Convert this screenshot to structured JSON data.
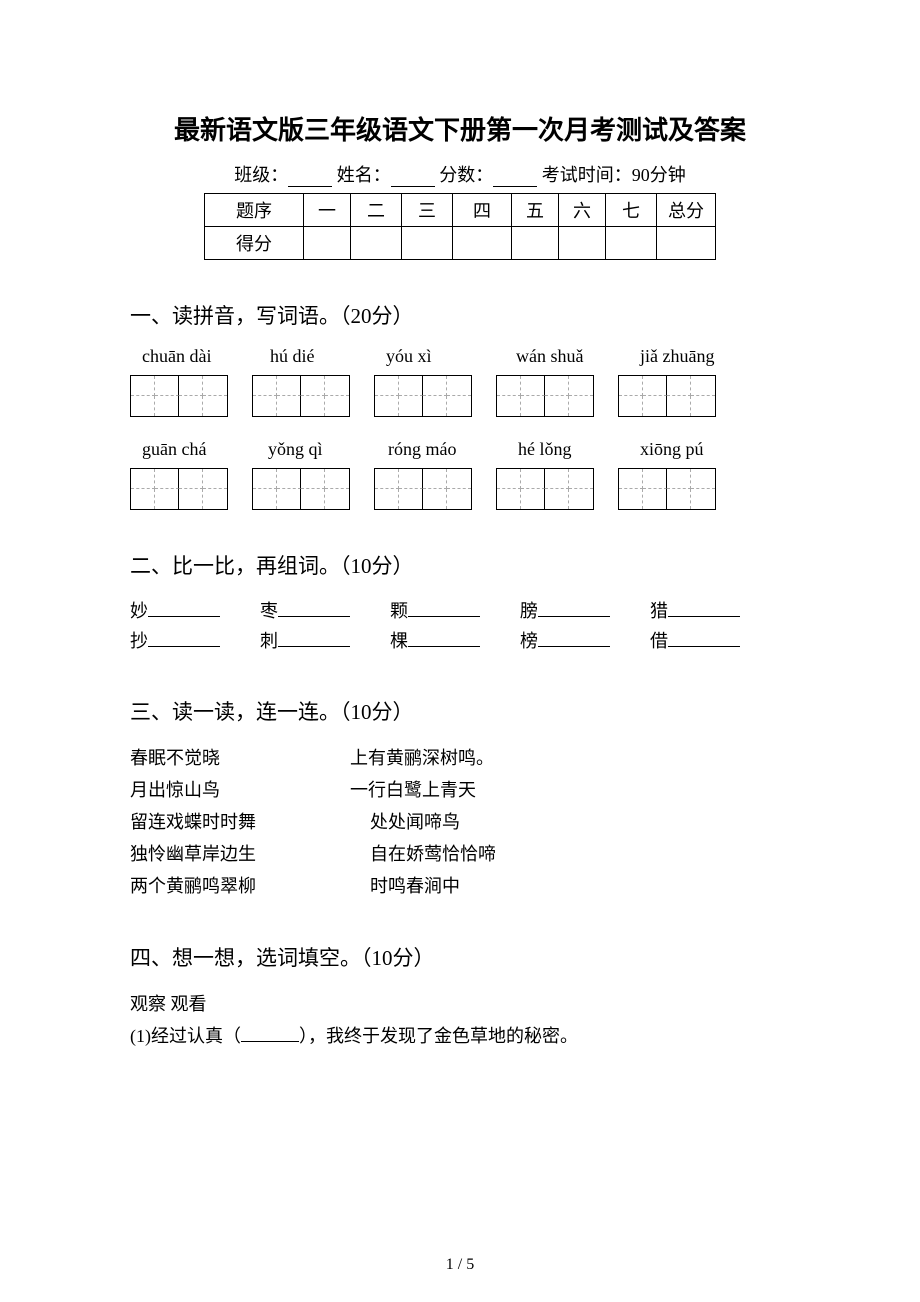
{
  "title": "最新语文版三年级语文下册第一次月考测试及答案",
  "info": {
    "class_label": "班级：",
    "name_label": "姓名：",
    "score_label": "分数：",
    "time_label": "考试时间：90分钟"
  },
  "score_table": {
    "row1": [
      "题序",
      "一",
      "二",
      "三",
      "四",
      "五",
      "六",
      "七",
      "总分"
    ],
    "row2_label": "得分"
  },
  "section1": {
    "heading": "一、读拼音，写词语。（20分）",
    "pinyin_row1": [
      "chuān dài",
      "hú dié",
      "yóu xì",
      "wán shuǎ",
      "jiǎ zhuāng"
    ],
    "pinyin_row2": [
      "guān chá",
      "yǒng qì",
      "róng máo",
      "hé lǒng",
      "xiōng pú"
    ]
  },
  "section2": {
    "heading": "二、比一比，再组词。（10分）",
    "row1": [
      "妙",
      "枣",
      "颗",
      "膀",
      "猎"
    ],
    "row2": [
      "抄",
      "刺",
      "棵",
      "榜",
      "借"
    ]
  },
  "section3": {
    "heading": "三、读一读，连一连。（10分）",
    "pairs": [
      {
        "l": "春眠不觉晓",
        "r": "上有黄鹂深树鸣。"
      },
      {
        "l": "月出惊山鸟",
        "r": "一行白鹭上青天"
      },
      {
        "l": "留连戏蝶时时舞",
        "r": "处处闻啼鸟"
      },
      {
        "l": "独怜幽草岸边生",
        "r": "自在娇莺恰恰啼"
      },
      {
        "l": "两个黄鹂鸣翠柳",
        "r": "时鸣春涧中"
      }
    ]
  },
  "section4": {
    "heading": "四、想一想，选词填空。（10分）",
    "words": "观察  观看",
    "q1_head": "(1)经过认真（",
    "q1_tail": "），我终于发现了金色草地的秘密。"
  },
  "page_number": "1 / 5",
  "colors": {
    "text": "#000000",
    "bg": "#ffffff",
    "border": "#000000",
    "dash": "#aaaaaa"
  }
}
